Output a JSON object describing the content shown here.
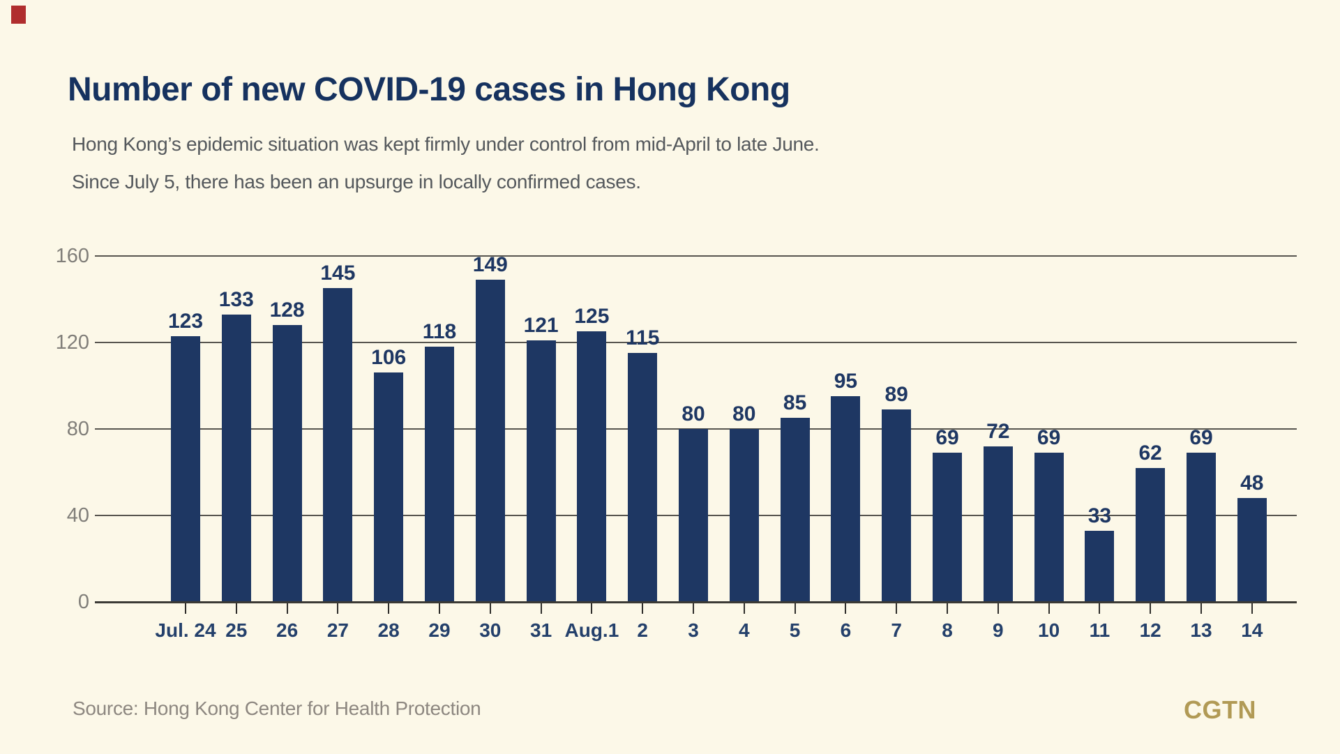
{
  "page": {
    "background_color": "#FCF8E8",
    "red_mark_color": "#B02E2E"
  },
  "header": {
    "title": "Number of new COVID-19 cases in Hong Kong",
    "subtitle_line1": "Hong Kong’s epidemic situation was kept firmly under control from mid-April to late June.",
    "subtitle_line2": "Since July 5, there has been an upsurge in locally confirmed cases."
  },
  "chart_data": {
    "type": "bar",
    "title": "Number of new COVID-19 cases in Hong Kong",
    "categories": [
      "Jul. 24",
      "25",
      "26",
      "27",
      "28",
      "29",
      "30",
      "31",
      "Aug.1",
      "2",
      "3",
      "4",
      "5",
      "6",
      "7",
      "8",
      "9",
      "10",
      "11",
      "12",
      "13",
      "14"
    ],
    "values": [
      123,
      133,
      128,
      145,
      106,
      118,
      149,
      121,
      125,
      115,
      80,
      80,
      85,
      95,
      89,
      69,
      72,
      69,
      33,
      62,
      69,
      48
    ],
    "xlabel": "",
    "ylabel": "",
    "ylim": [
      0,
      160
    ],
    "y_ticks": [
      0,
      40,
      80,
      120,
      160
    ],
    "grid": true,
    "legend": "none",
    "bar_color": "#1E3763",
    "value_label_color": "#1E3763",
    "x_label_color": "#24406B",
    "y_label_color": "#807E79",
    "gridline_color": "#57554F",
    "baseline_color": "#3B3A35"
  },
  "footer": {
    "source": "Source: Hong Kong Center for Health Protection",
    "logo": "CGTN",
    "logo_color": "#B19A55"
  }
}
